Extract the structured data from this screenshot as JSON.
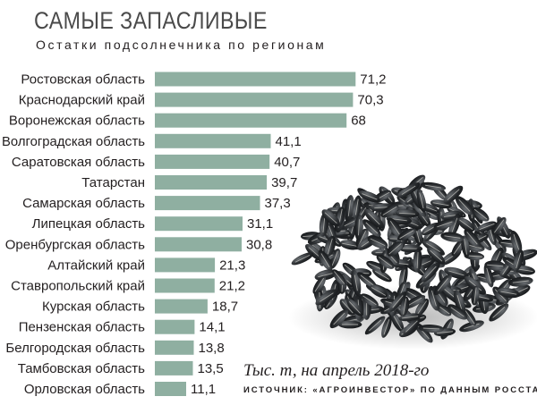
{
  "header": {
    "title": "САМЫЕ ЗАПАСЛИВЫЕ",
    "subtitle": "Остатки подсолнечника по регионам"
  },
  "footer": {
    "unit_note": "Тыс. т, на апрель 2018-го",
    "source_note": "ИСТОЧНИК: «АГРОИНВЕСТОР» ПО ДАННЫМ РОССТАТА"
  },
  "colors": {
    "bar": "#8fafa1",
    "text": "#231f20"
  },
  "illustration": "sunflower-seeds-pile",
  "chart_data": {
    "type": "bar",
    "orientation": "horizontal",
    "title": "САМЫЕ ЗАПАСЛИВЫЕ",
    "subtitle": "Остатки подсолнечника по регионам",
    "categories": [
      "Ростовская область",
      "Краснодарский край",
      "Воронежская область",
      "Волгоградская область",
      "Саратовская область",
      "Татарстан",
      "Самарская область",
      "Липецкая область",
      "Оренбургская область",
      "Алтайский край",
      "Ставропольский край",
      "Курская область",
      "Пензенская область",
      "Белгородская область",
      "Тамбовская область",
      "Орловская область"
    ],
    "values": [
      71.2,
      70.3,
      68,
      41.1,
      40.7,
      39.7,
      37.3,
      31.1,
      30.8,
      21.3,
      21.2,
      18.7,
      14.1,
      13.8,
      13.5,
      11.1
    ],
    "value_labels": [
      "71,2",
      "70,3",
      "68",
      "41,1",
      "40,7",
      "39,7",
      "37,3",
      "31,1",
      "30,8",
      "21,3",
      "21,2",
      "18,7",
      "14,1",
      "13,8",
      "13,5",
      "11,1"
    ],
    "unit": "Тыс. т",
    "xlim": [
      0,
      72
    ],
    "grid": false,
    "legend": "none"
  }
}
